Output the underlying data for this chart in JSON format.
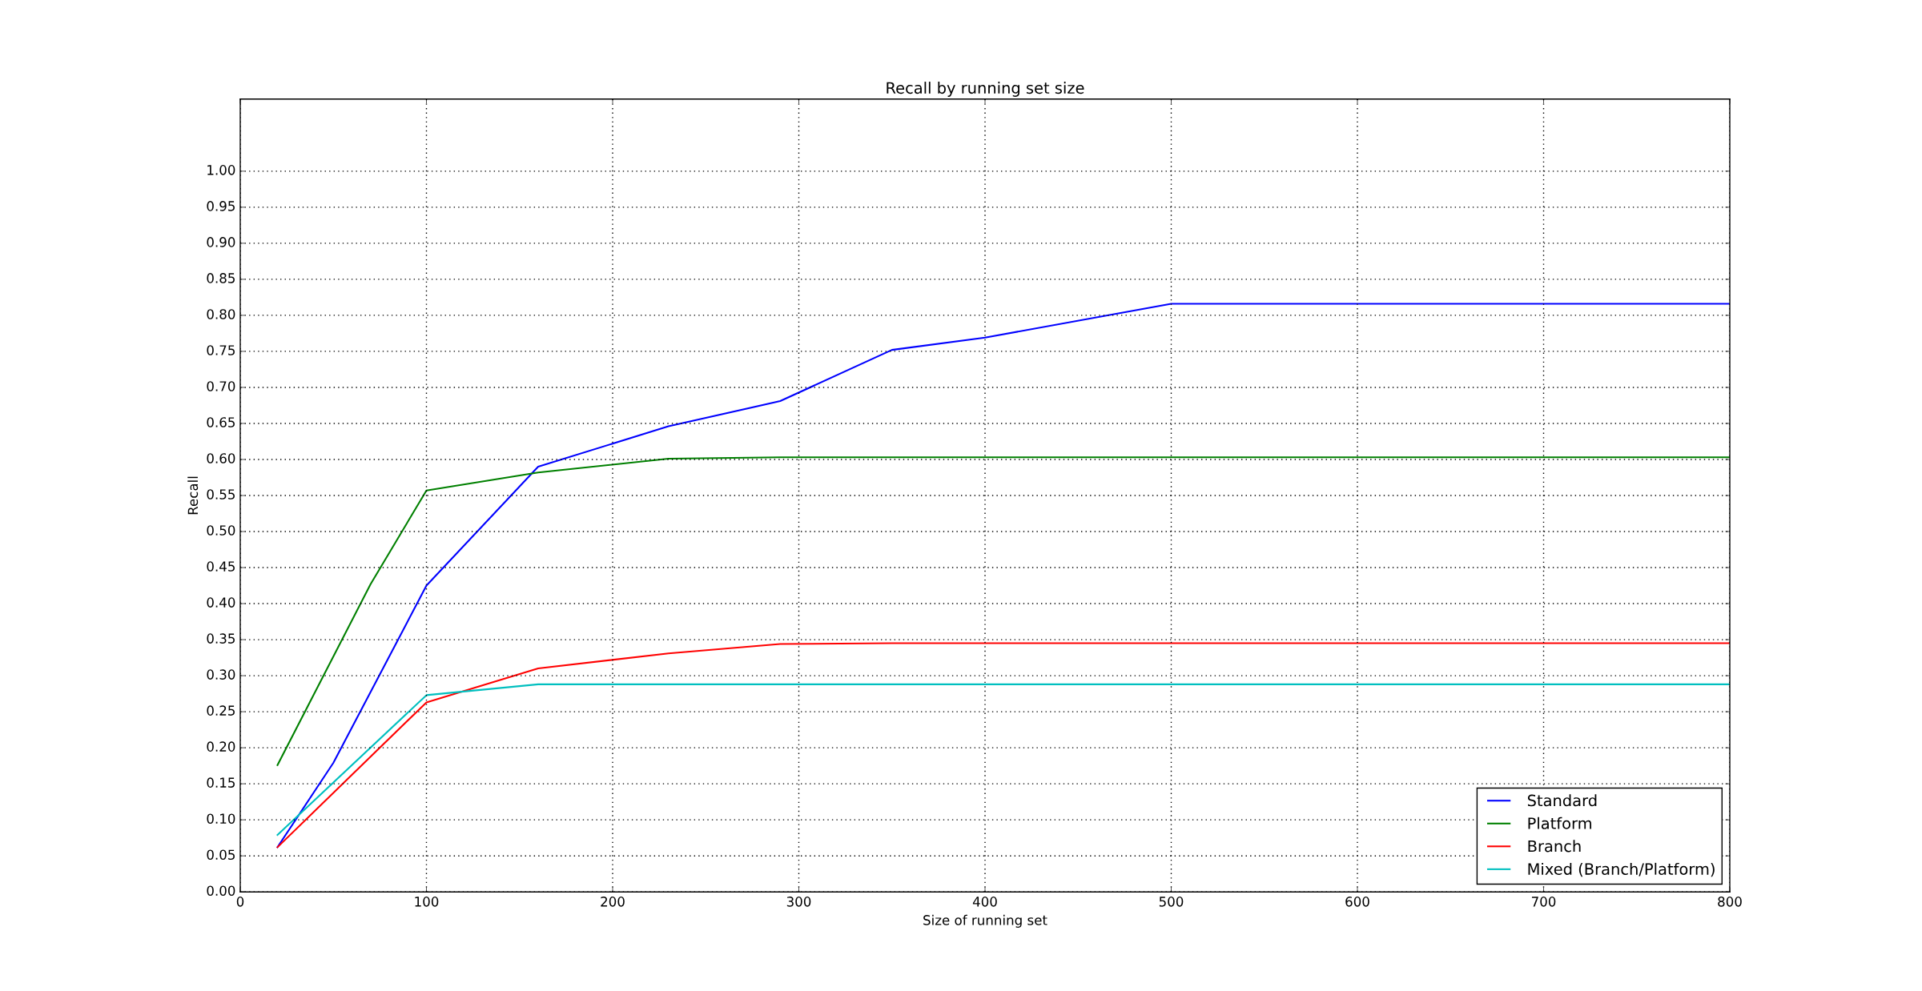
{
  "chart_data": {
    "type": "line",
    "title": "Recall by running set size",
    "xlabel": "Size of running set",
    "ylabel": "Recall",
    "xlim": [
      0,
      800
    ],
    "xticks": [
      0,
      100,
      200,
      300,
      400,
      500,
      600,
      700,
      800
    ],
    "ylim": [
      0,
      1.1
    ],
    "yticks": [
      {
        "value": 0,
        "label": "0.00"
      },
      {
        "value": 0.05,
        "label": "0.05"
      },
      {
        "value": 0.1,
        "label": "0.10"
      },
      {
        "value": 0.15,
        "label": "0.15"
      },
      {
        "value": 0.2,
        "label": "0.20"
      },
      {
        "value": 0.25,
        "label": "0.25"
      },
      {
        "value": 0.3,
        "label": "0.30"
      },
      {
        "value": 0.35,
        "label": "0.35"
      },
      {
        "value": 0.4,
        "label": "0.40"
      },
      {
        "value": 0.45,
        "label": "0.45"
      },
      {
        "value": 0.5,
        "label": "0.50"
      },
      {
        "value": 0.55,
        "label": "0.55"
      },
      {
        "value": 0.6,
        "label": "0.60"
      },
      {
        "value": 0.65,
        "label": "0.65"
      },
      {
        "value": 0.7,
        "label": "0.70"
      },
      {
        "value": 0.75,
        "label": "0.75"
      },
      {
        "value": 0.8,
        "label": "0.80"
      },
      {
        "value": 0.85,
        "label": "0.85"
      },
      {
        "value": 0.9,
        "label": "0.90"
      },
      {
        "value": 0.95,
        "label": "0.95"
      },
      {
        "value": 1.0,
        "label": "1.00"
      }
    ],
    "grid": true,
    "legend": "bottom right",
    "series": [
      {
        "name": "Standard",
        "color": "#0000ff",
        "x": [
          20,
          50,
          100,
          160,
          230,
          290,
          350,
          400,
          500,
          800
        ],
        "values": [
          0.062,
          0.179,
          0.425,
          0.59,
          0.646,
          0.681,
          0.752,
          0.769,
          0.816,
          0.816
        ]
      },
      {
        "name": "Platform",
        "color": "#008000",
        "x": [
          20,
          70,
          100,
          160,
          230,
          290,
          800
        ],
        "values": [
          0.176,
          0.427,
          0.557,
          0.582,
          0.601,
          0.603,
          0.603
        ]
      },
      {
        "name": "Branch",
        "color": "#ff0000",
        "x": [
          20,
          100,
          160,
          230,
          290,
          350,
          800
        ],
        "values": [
          0.062,
          0.263,
          0.31,
          0.331,
          0.344,
          0.345,
          0.345
        ]
      },
      {
        "name": "Mixed (Branch/Platform)",
        "color": "#00bfbf",
        "x": [
          20,
          100,
          160,
          800
        ],
        "values": [
          0.079,
          0.273,
          0.288,
          0.288
        ]
      }
    ]
  }
}
